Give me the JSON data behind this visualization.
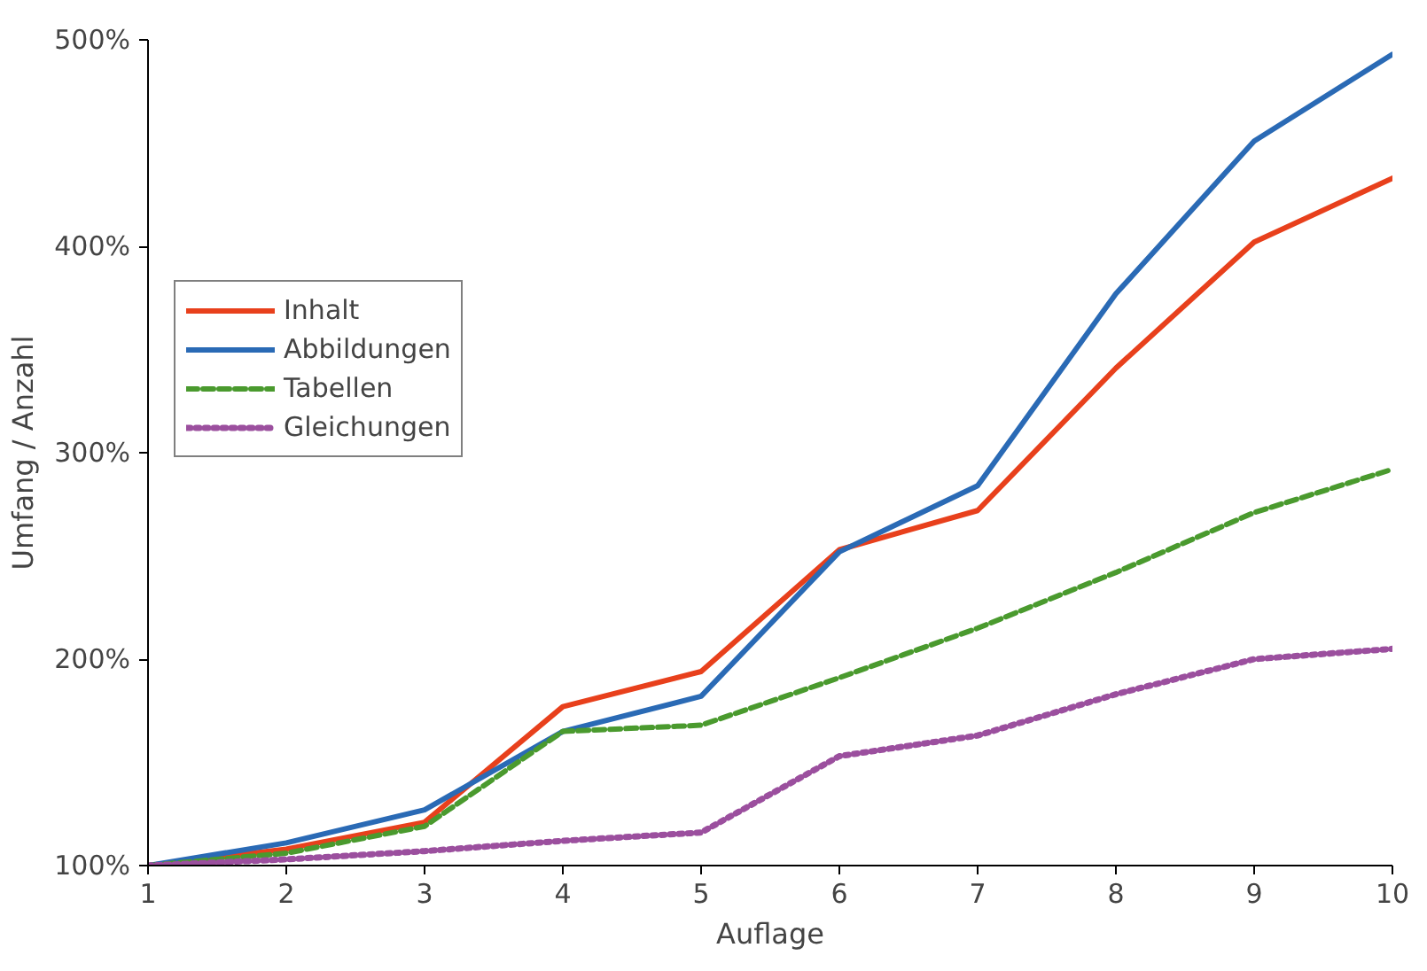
{
  "chart_data": {
    "type": "line",
    "xlabel": "Auflage",
    "ylabel": "Umfang / Anzahl",
    "x": [
      1,
      2,
      3,
      4,
      5,
      6,
      7,
      8,
      9,
      10
    ],
    "xlim": [
      1,
      10
    ],
    "xticks": [
      1,
      2,
      3,
      4,
      5,
      6,
      7,
      8,
      9,
      10
    ],
    "ylim": [
      100,
      500
    ],
    "yticks": [
      {
        "value": 100,
        "label": "100%"
      },
      {
        "value": 200,
        "label": "200%"
      },
      {
        "value": 300,
        "label": "300%"
      },
      {
        "value": 400,
        "label": "400%"
      },
      {
        "value": 500,
        "label": "500%"
      }
    ],
    "grid": false,
    "legend": "left",
    "series": [
      {
        "name": "Inhalt",
        "color": "#e8401c",
        "line_style": "solid",
        "values": [
          100,
          108,
          121,
          177,
          194,
          253,
          272,
          341,
          402,
          433
        ]
      },
      {
        "name": "Abbildungen",
        "color": "#2a6ab5",
        "line_style": "solid",
        "values": [
          100,
          111,
          127,
          165,
          182,
          252,
          284,
          377,
          451,
          493
        ]
      },
      {
        "name": "Tabellen",
        "color": "#4a9a2e",
        "line_style": "dashed",
        "values": [
          100,
          106,
          119,
          165,
          168,
          191,
          215,
          242,
          271,
          292
        ]
      },
      {
        "name": "Gleichungen",
        "color": "#9b4f9e",
        "line_style": "dotted",
        "values": [
          100,
          103,
          107,
          112,
          116,
          153,
          163,
          183,
          200,
          205
        ]
      }
    ]
  }
}
